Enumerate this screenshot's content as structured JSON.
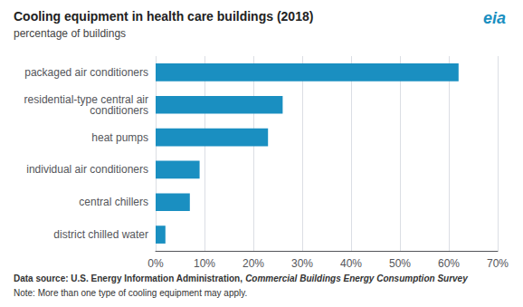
{
  "chart_data": {
    "type": "bar",
    "orientation": "horizontal",
    "title": "Cooling equipment in health care buildings (2018)",
    "subtitle": "percentage of buildings",
    "categories": [
      "district chilled water",
      "central chillers",
      "individual air conditioners",
      "heat pumps",
      "residential-type central air\nconditioners",
      "packaged air conditioners"
    ],
    "values": [
      2,
      7,
      9,
      23,
      26,
      62
    ],
    "color": "#1a8fc1",
    "xlim": [
      0,
      70
    ],
    "xticks": [
      {
        "value": 0,
        "label": "0%"
      },
      {
        "value": 10,
        "label": "10%"
      },
      {
        "value": 20,
        "label": "20%"
      },
      {
        "value": 30,
        "label": "30%"
      },
      {
        "value": 40,
        "label": "40%"
      },
      {
        "value": 50,
        "label": "50%"
      },
      {
        "value": 60,
        "label": "60%"
      },
      {
        "value": 70,
        "label": "70%"
      }
    ],
    "grid": true,
    "annotations": [
      "eia",
      "Data source: U.S. Energy Information Administration, ",
      "Commercial Buildings Energy Consumption Survey",
      "Note: More than one type of cooling equipment may apply."
    ]
  }
}
